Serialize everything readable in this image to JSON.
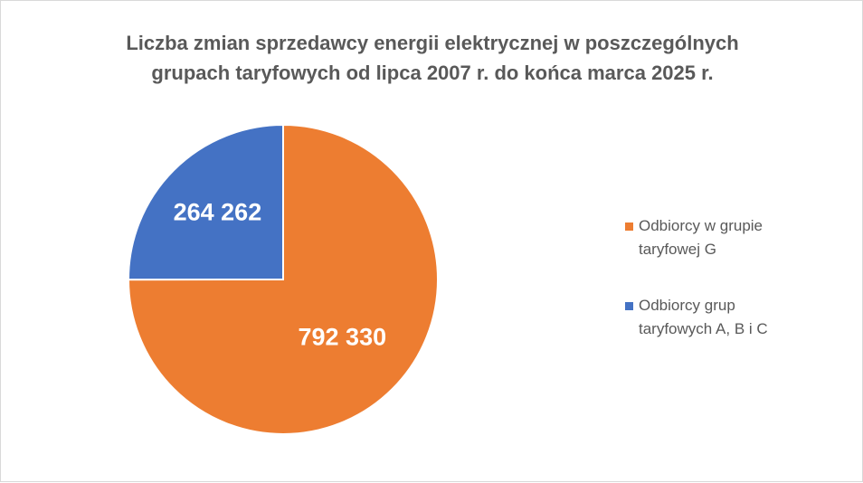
{
  "chart_data": {
    "type": "pie",
    "title_lines": [
      "Liczba zmian sprzedawcy energii elektrycznej w poszczególnych",
      "grupach taryfowych od lipca 2007 r. do końca marca 2025 r."
    ],
    "slices": [
      {
        "name_lines": [
          "Odbiorcy w grupie",
          "taryfowej G"
        ],
        "value": 792330,
        "label": "792 330",
        "color": "#ED7D31"
      },
      {
        "name_lines": [
          "Odbiorcy grup",
          "taryfowych A, B i C"
        ],
        "value": 264262,
        "label": "264 262",
        "color": "#4472C4"
      }
    ],
    "legend_position": "right"
  }
}
